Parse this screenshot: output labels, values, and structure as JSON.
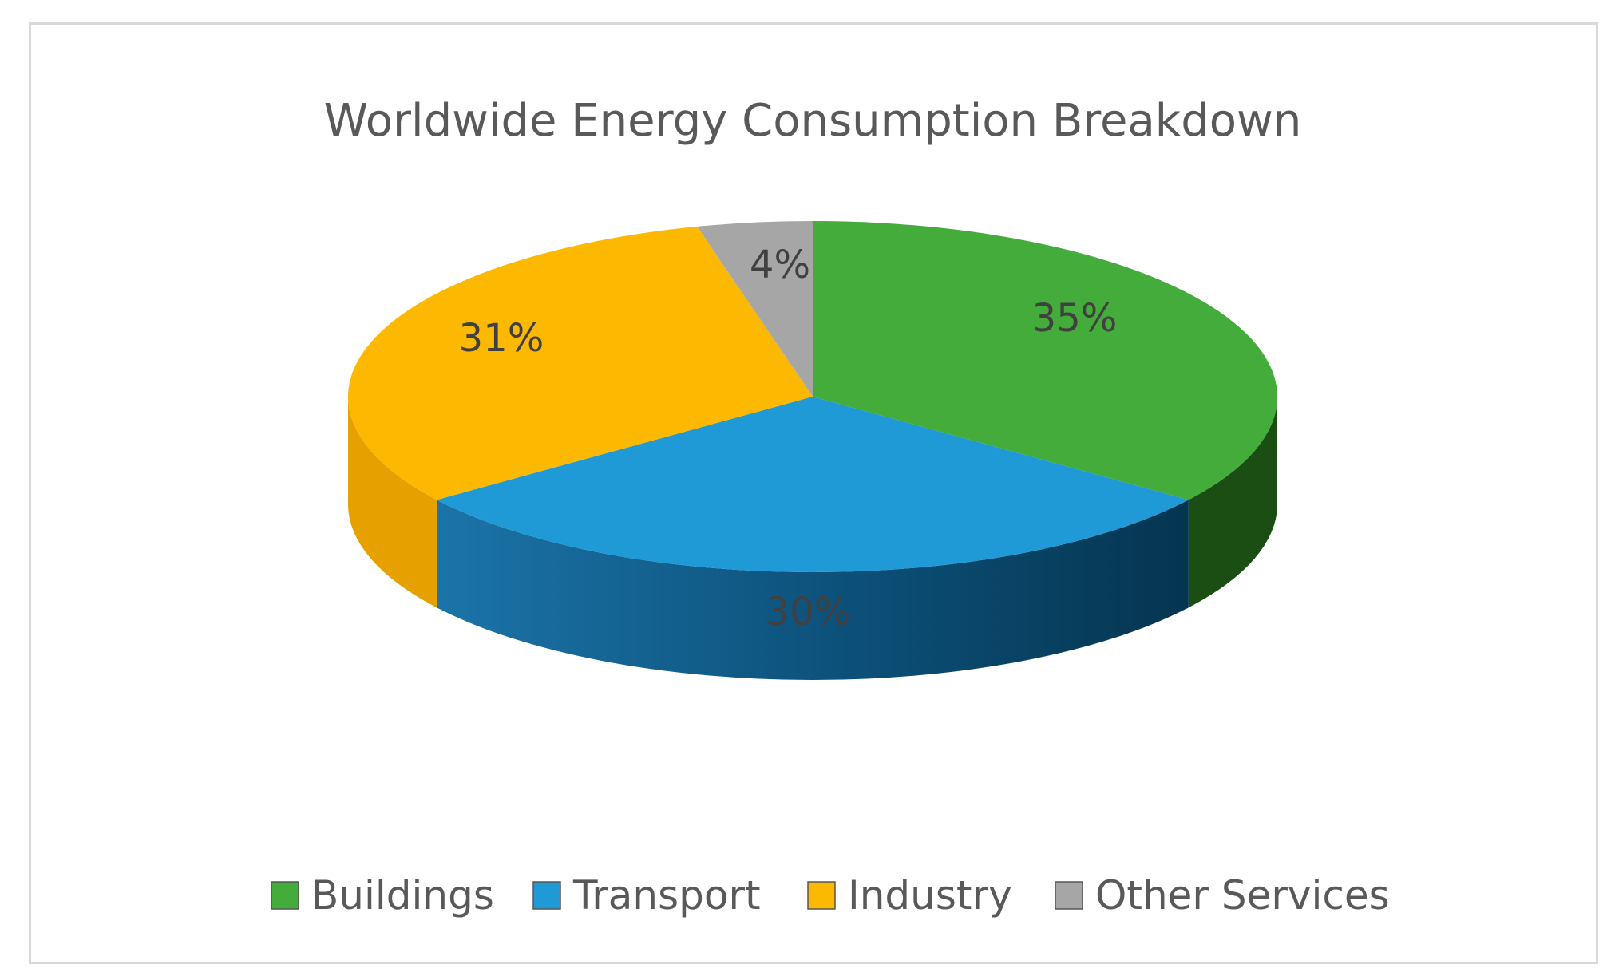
{
  "chart_data": {
    "type": "pie",
    "title": "Worldwide Energy Consumption Breakdown",
    "categories": [
      "Buildings",
      "Transport",
      "Industry",
      "Other Services"
    ],
    "values": [
      35,
      30,
      31,
      4
    ],
    "labels": [
      "35%",
      "30%",
      "31%",
      "4%"
    ],
    "colors": [
      "#43AC3B",
      "#209AD6",
      "#FDB902",
      "#A6A6A6"
    ],
    "side_colors": [
      "#1A4E12",
      "#0D5C8C",
      "#E6A000",
      "#8C8C8C"
    ],
    "legend_position": "bottom",
    "three_d": true
  }
}
